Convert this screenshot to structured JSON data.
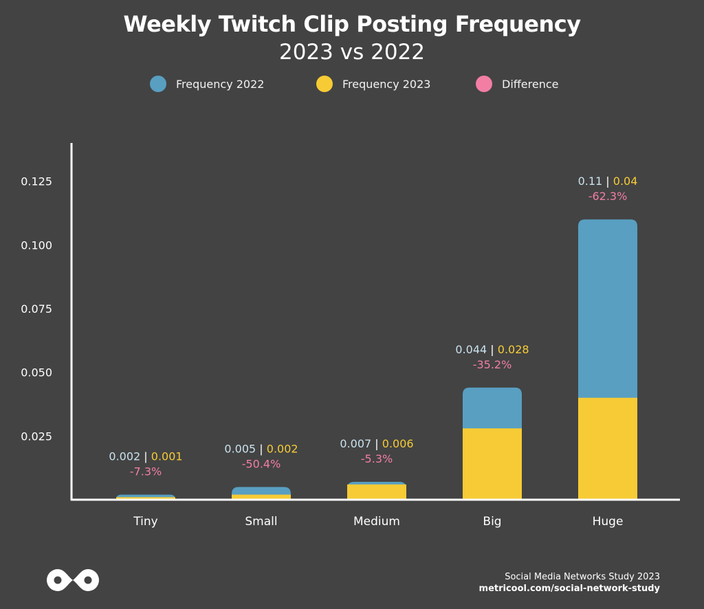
{
  "chart_data": {
    "type": "bar",
    "title": "Weekly Twitch Clip Posting Frequency",
    "subtitle": "2023 vs 2022",
    "categories": [
      "Tiny",
      "Small",
      "Medium",
      "Big",
      "Huge"
    ],
    "series": [
      {
        "name": "Frequency 2022",
        "values": [
          0.002,
          0.005,
          0.007,
          0.044,
          0.11
        ],
        "color": "#589fc2"
      },
      {
        "name": "Frequency 2023",
        "values": [
          0.001,
          0.002,
          0.006,
          0.028,
          0.04
        ],
        "color": "#f6cb35"
      }
    ],
    "difference": {
      "name": "Difference",
      "values": [
        "-7.3%",
        "-50.4%",
        "-5.3%",
        "-35.2%",
        "-62.3%"
      ],
      "color": "#f27ea4"
    },
    "value_labels": {
      "v2022": [
        "0.002",
        "0.005",
        "0.007",
        "0.044",
        "0.11"
      ],
      "v2023": [
        "0.001",
        "0.002",
        "0.006",
        "0.028",
        "0.04"
      ],
      "separator": "|"
    },
    "yticks": [
      "0.025",
      "0.050",
      "0.075",
      "0.100",
      "0.125"
    ],
    "ytick_values": [
      0.025,
      0.05,
      0.075,
      0.1,
      0.125
    ],
    "ylim": [
      0,
      0.14
    ],
    "legend_position": "top",
    "grid": false
  },
  "footer": {
    "line1": "Social Media Networks Study 2023",
    "line2": "metricool.com/social-network-study",
    "logo_icon": "metricool-logo-icon"
  },
  "colors": {
    "background": "#434343",
    "text": "#ffffff",
    "axis": "#ffffff"
  }
}
